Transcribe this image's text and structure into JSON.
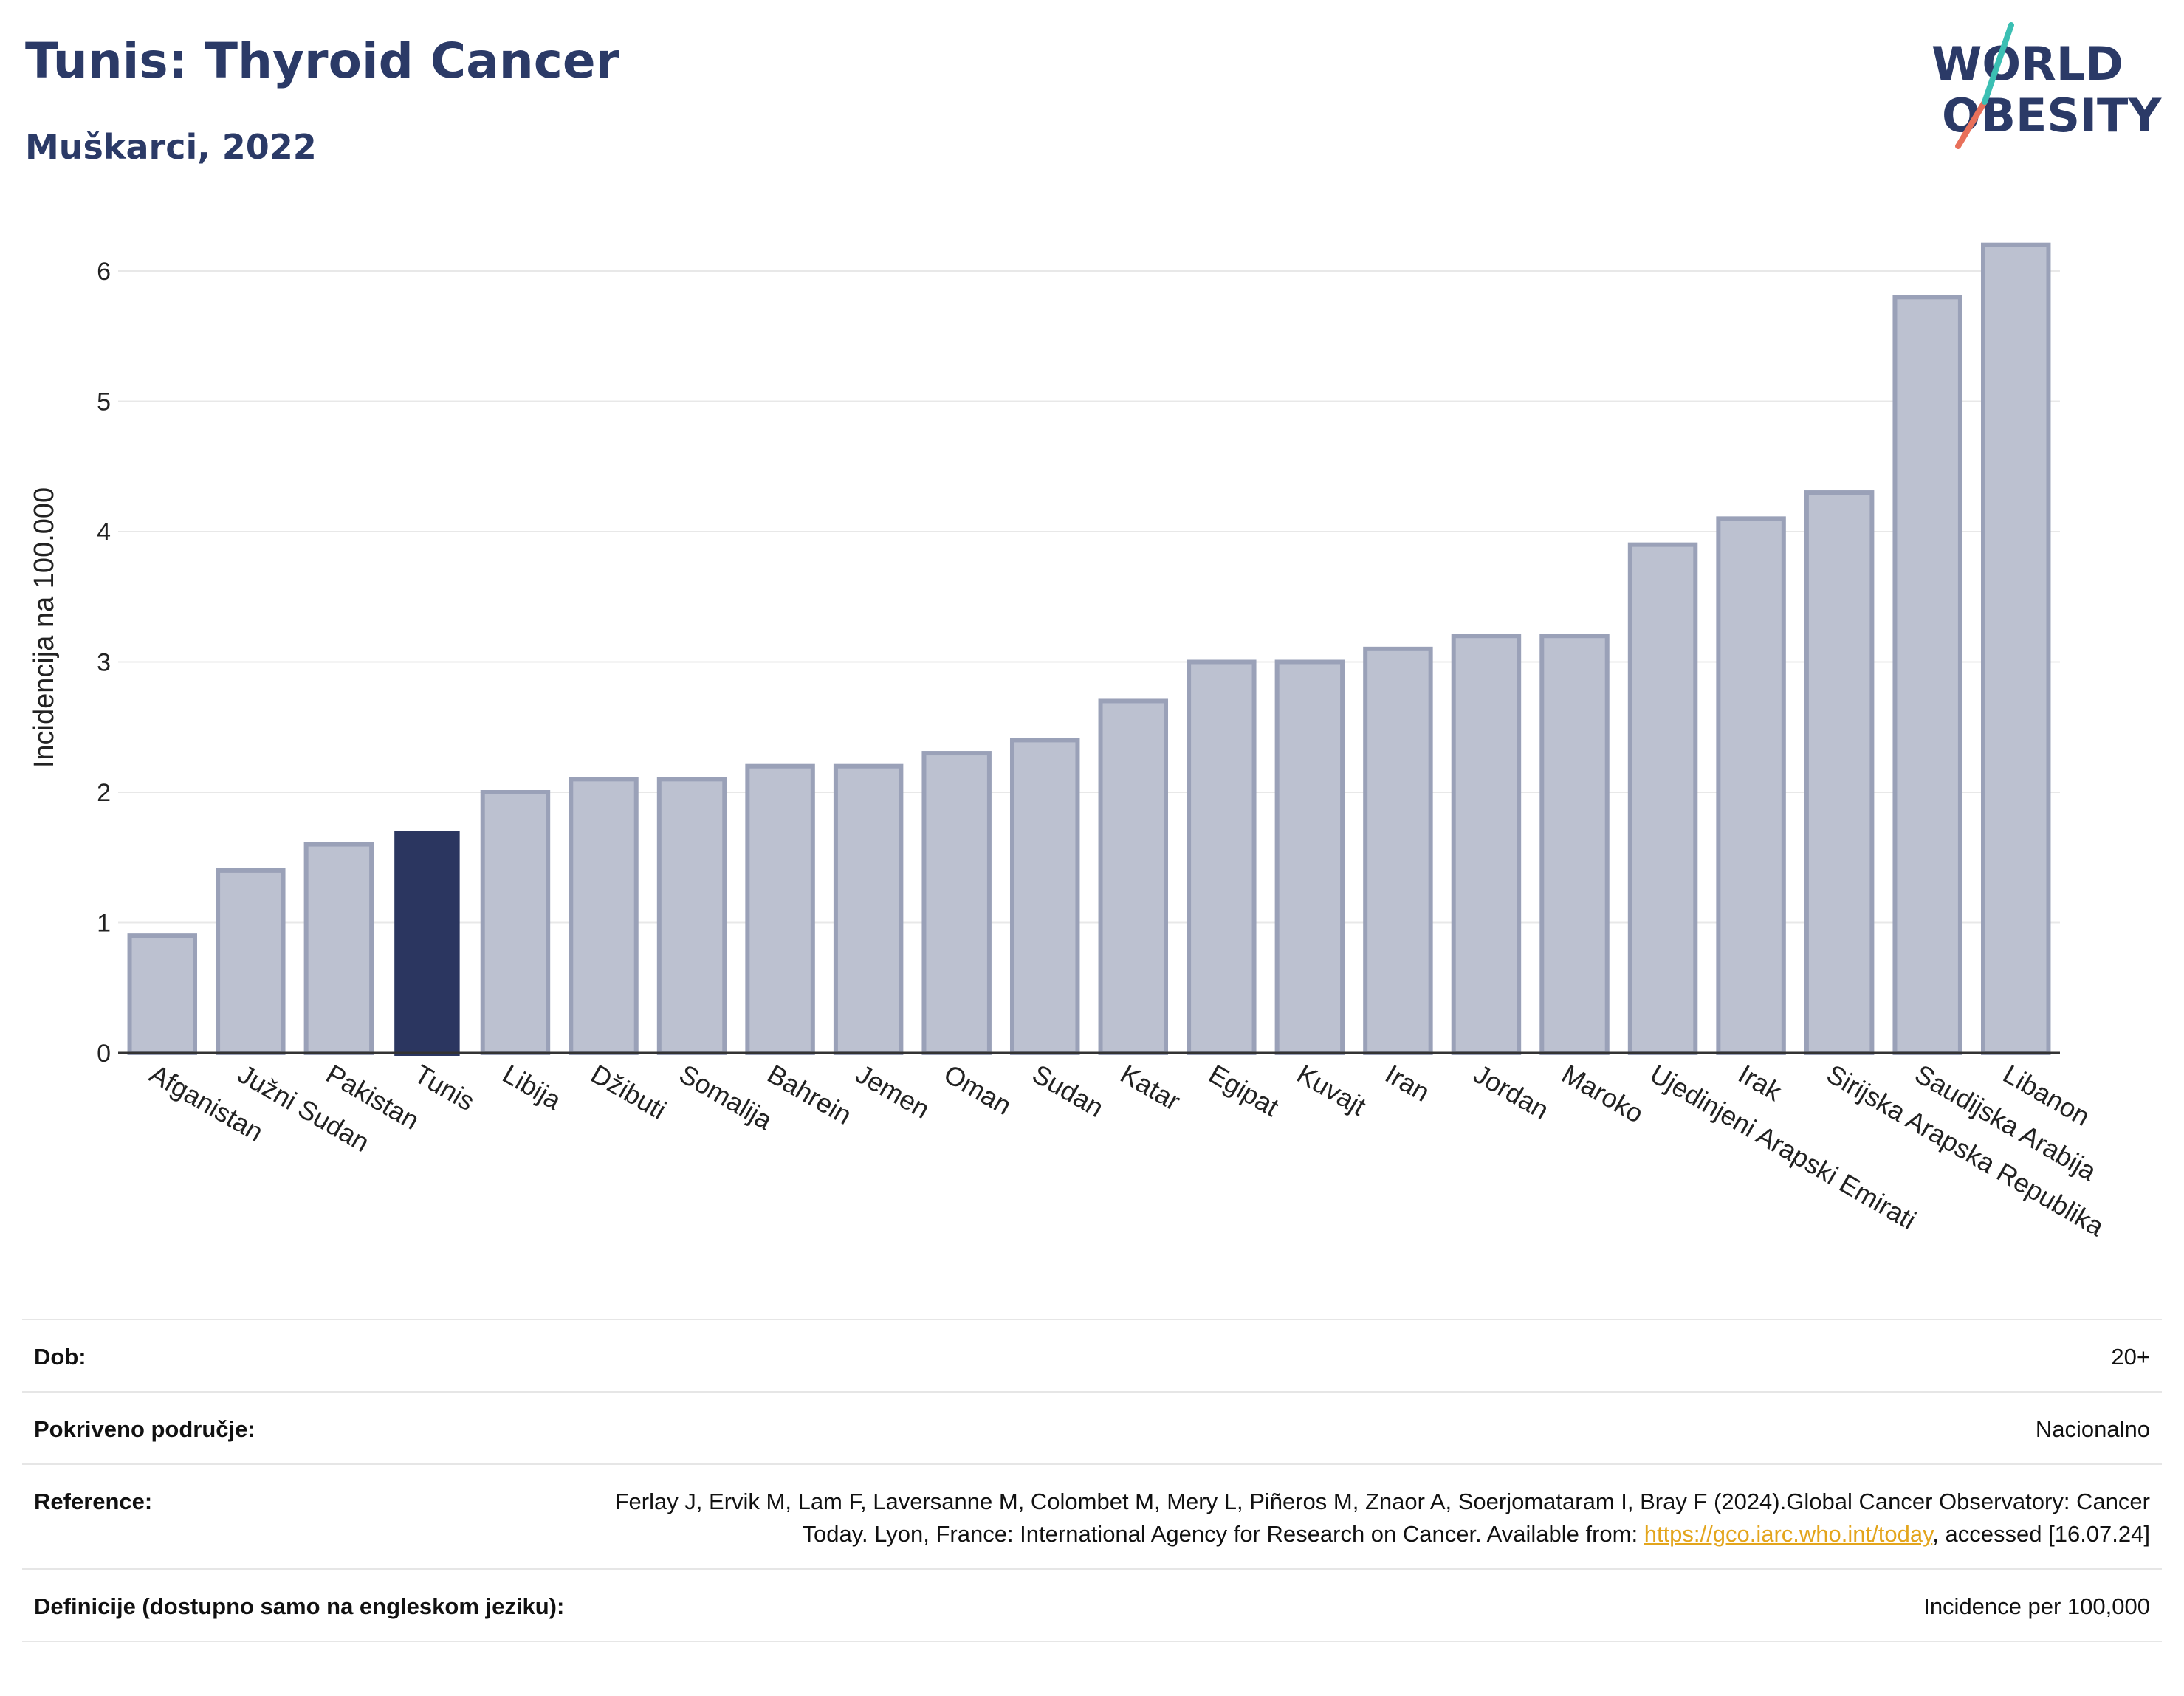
{
  "header": {
    "title": "Tunis: Thyroid Cancer",
    "subtitle": "Muškarci, 2022"
  },
  "logo": {
    "line1": "WORLD",
    "line2": "OBESITY"
  },
  "chart_data": {
    "type": "bar",
    "ylabel": "Incidencija na 100.000",
    "ylim": [
      0,
      6.5
    ],
    "yticks": [
      0,
      1,
      2,
      3,
      4,
      5,
      6
    ],
    "grid": true,
    "highlight": "Tunis",
    "colors": {
      "bar": "#bcc1d0",
      "bar_edge": "#9aa1b8",
      "highlight": "#2b3660",
      "grid": "#e8e8e8",
      "axis": "#333333"
    },
    "categories": [
      "Afganistan",
      "Južni Sudan",
      "Pakistan",
      "Tunis",
      "Libija",
      "Džibuti",
      "Somalija",
      "Bahrein",
      "Jemen",
      "Oman",
      "Sudan",
      "Katar",
      "Egipat",
      "Kuvajt",
      "Iran",
      "Jordan",
      "Maroko",
      "Ujedinjeni Arapski Emirati",
      "Irak",
      "Sirijska Arapska Republika",
      "Saudijska Arabija",
      "Libanon"
    ],
    "values": [
      0.9,
      1.4,
      1.6,
      1.7,
      2.0,
      2.1,
      2.1,
      2.2,
      2.2,
      2.3,
      2.4,
      2.7,
      3.0,
      3.0,
      3.1,
      3.2,
      3.2,
      3.9,
      4.1,
      4.3,
      5.8,
      6.2
    ]
  },
  "meta": {
    "rows": [
      {
        "label": "Dob:",
        "value": "20+"
      },
      {
        "label": "Pokriveno područje:",
        "value": "Nacionalno"
      },
      {
        "label": "Reference:",
        "value_pre": "Ferlay J, Ervik M, Lam F, Laversanne M, Colombet M, Mery L, Piñeros M, Znaor A, Soerjomataram I, Bray F (2024).Global Cancer Observatory: Cancer Today. Lyon, France: International Agency for Research on Cancer. Available from: ",
        "link": "https://gco.iarc.who.int/today",
        "value_post": ", accessed [16.07.24]"
      },
      {
        "label": "Definicije (dostupno samo na engleskom jeziku):",
        "value": "Incidence per 100,000"
      }
    ]
  }
}
